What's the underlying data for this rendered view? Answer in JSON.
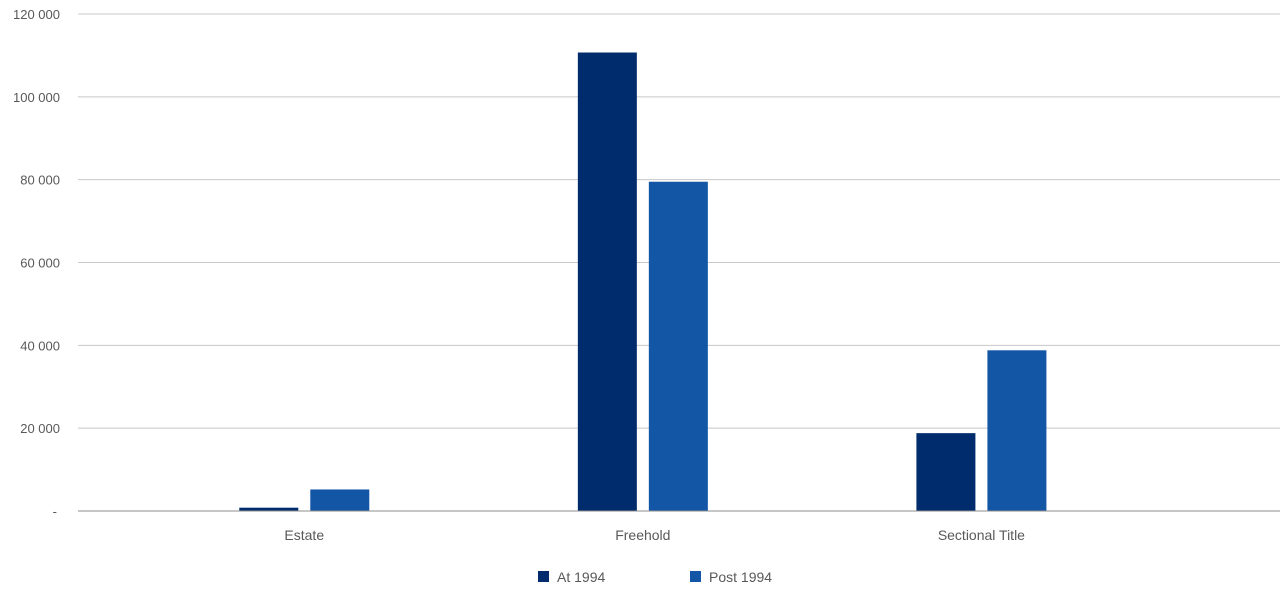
{
  "chart_data": {
    "type": "bar",
    "categories": [
      "Estate",
      "Freehold",
      "Sectional Title"
    ],
    "series": [
      {
        "name": "At 1994",
        "values": [
          800,
          110700,
          18800
        ],
        "color": "#002b6d"
      },
      {
        "name": "Post 1994",
        "values": [
          5200,
          79500,
          38800
        ],
        "color": "#1456a6"
      }
    ],
    "ylim": [
      0,
      120000
    ],
    "yticks": [
      {
        "value": 0,
        "label": "-"
      },
      {
        "value": 20000,
        "label": "20 000"
      },
      {
        "value": 40000,
        "label": "40 000"
      },
      {
        "value": 60000,
        "label": "60 000"
      },
      {
        "value": 80000,
        "label": "80 000"
      },
      {
        "value": 100000,
        "label": "100 000"
      },
      {
        "value": 120000,
        "label": "120 000"
      }
    ],
    "grid": true,
    "legend_position": "bottom",
    "gridline_color": "#c8c8c8",
    "axis_line_color": "#8c8c8c",
    "label_color": "#595959"
  }
}
